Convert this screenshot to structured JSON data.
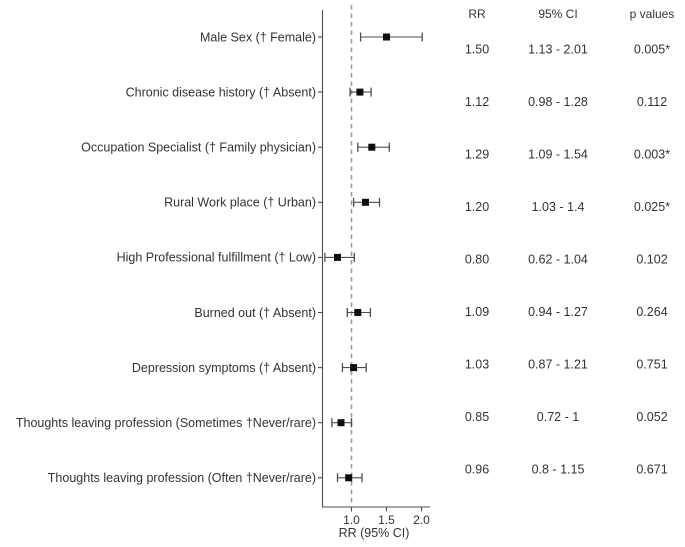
{
  "chart_data": {
    "type": "scatter",
    "variant": "forest-plot",
    "title": "",
    "xlabel": "RR (95% CI)",
    "x_tick_labels": [
      "1.0",
      "1.5",
      "2.0"
    ],
    "x_tick_values": [
      1.0,
      1.5,
      2.0
    ],
    "reference_line_x": 1.0,
    "x_axis_range": [
      0.57,
      2.12
    ],
    "grid": false,
    "legend": "none",
    "table_columns": [
      "RR",
      "95% CI",
      "p values"
    ],
    "rows": [
      {
        "label": "Male Sex († Female)",
        "rr": 1.5,
        "ci_low": 1.13,
        "ci_high": 2.01,
        "rr_text": "1.50",
        "ci_text": "1.13 - 2.01",
        "p_text": "0.005*"
      },
      {
        "label": "Chronic disease history († Absent)",
        "rr": 1.12,
        "ci_low": 0.98,
        "ci_high": 1.28,
        "rr_text": "1.12",
        "ci_text": "0.98 - 1.28",
        "p_text": "0.112"
      },
      {
        "label": "Occupation Specialist († Family physician)",
        "rr": 1.29,
        "ci_low": 1.09,
        "ci_high": 1.54,
        "rr_text": "1.29",
        "ci_text": "1.09 - 1.54",
        "p_text": "0.003*"
      },
      {
        "label": "Rural Work place († Urban)",
        "rr": 1.2,
        "ci_low": 1.03,
        "ci_high": 1.4,
        "rr_text": "1.20",
        "ci_text": "1.03 - 1.4",
        "p_text": "0.025*"
      },
      {
        "label": "High Professional fulfillment († Low)",
        "rr": 0.8,
        "ci_low": 0.62,
        "ci_high": 1.04,
        "rr_text": "0.80",
        "ci_text": "0.62 - 1.04",
        "p_text": "0.102"
      },
      {
        "label": "Burned out († Absent)",
        "rr": 1.09,
        "ci_low": 0.94,
        "ci_high": 1.27,
        "rr_text": "1.09",
        "ci_text": "0.94 - 1.27",
        "p_text": "0.264"
      },
      {
        "label": "Depression symptoms († Absent)",
        "rr": 1.03,
        "ci_low": 0.87,
        "ci_high": 1.21,
        "rr_text": "1.03",
        "ci_text": "0.87 - 1.21",
        "p_text": "0.751"
      },
      {
        "label": "Thoughts leaving profession (Sometimes †Never/rare)",
        "rr": 0.85,
        "ci_low": 0.72,
        "ci_high": 1.0,
        "rr_text": "0.85",
        "ci_text": "0.72 - 1",
        "p_text": "0.052"
      },
      {
        "label": "Thoughts leaving profession (Often †Never/rare)",
        "rr": 0.96,
        "ci_low": 0.8,
        "ci_high": 1.15,
        "rr_text": "0.96",
        "ci_text": "0.8 - 1.15",
        "p_text": "0.671"
      }
    ],
    "colors": {
      "text": "#333333",
      "axis": "#4d4d4d",
      "whisker": "#4d4d4d",
      "marker": "#0d0d0d",
      "reference_line": "#9298b8",
      "background": "#ffffff"
    }
  }
}
